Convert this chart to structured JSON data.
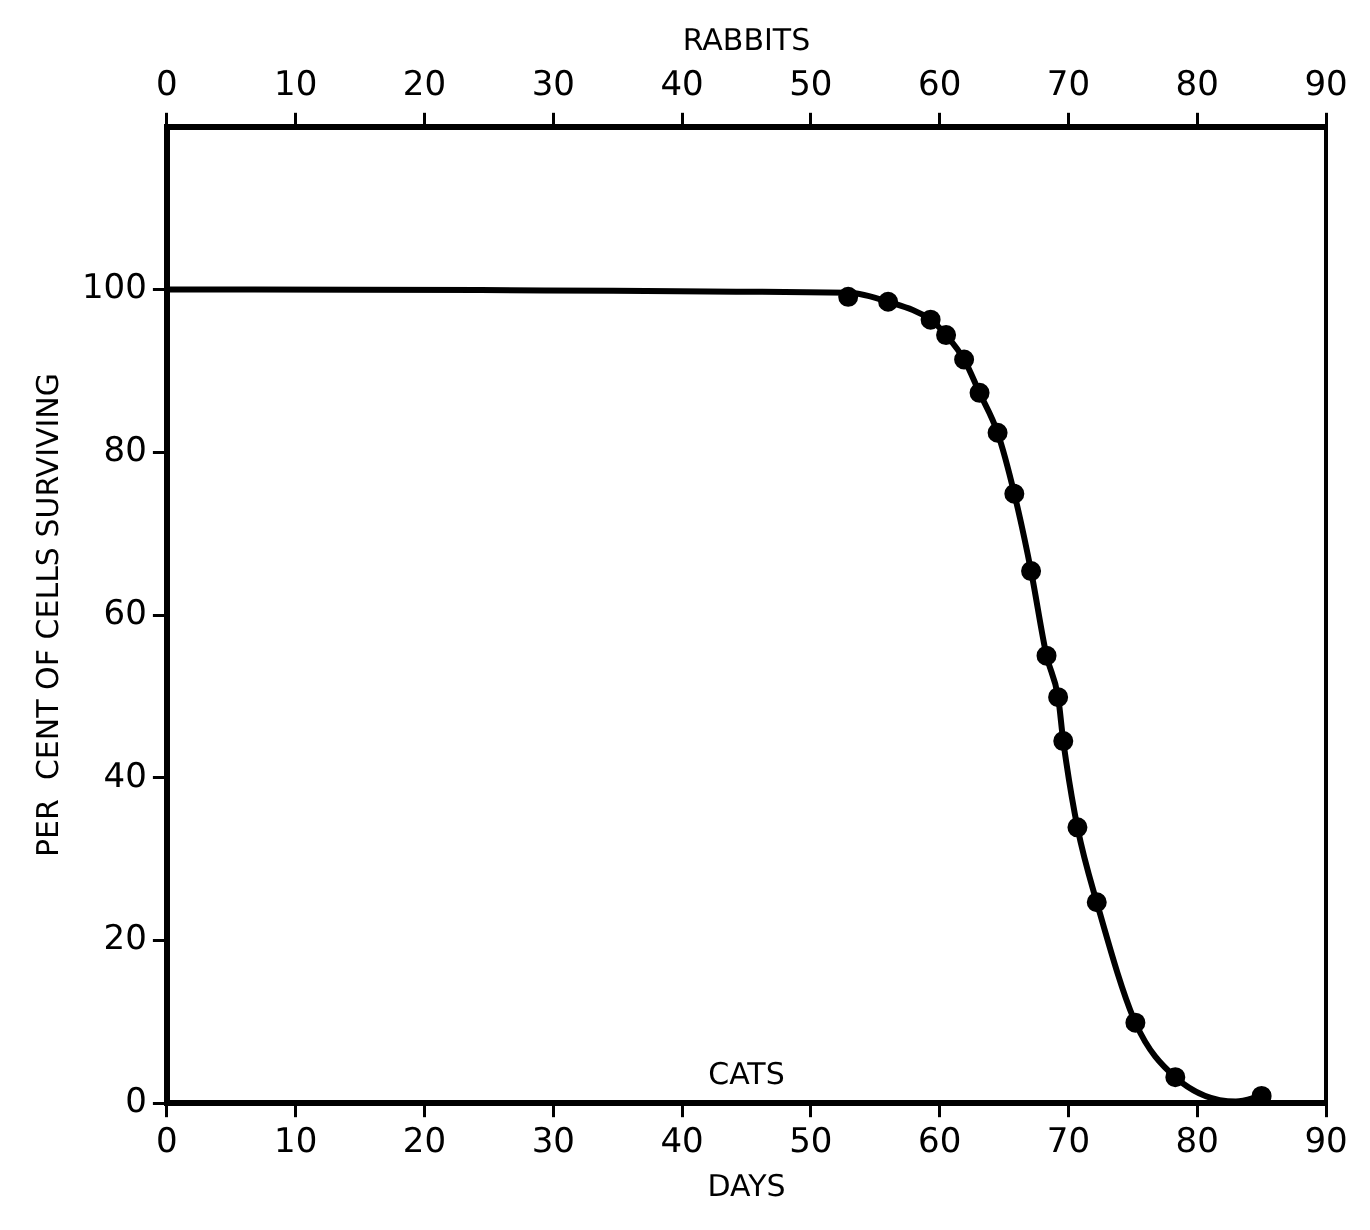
{
  "chart_data": {
    "type": "scatter",
    "xlabel": "DAYS",
    "x2label": "RABBITS",
    "ylabel": "PER  CENT OF CELLS SURVIVING",
    "annotations": [
      "CATS"
    ],
    "xlim": [
      0,
      90
    ],
    "xticks": [
      0,
      10,
      20,
      30,
      40,
      50,
      60,
      70,
      80,
      90
    ],
    "x2lim": [
      0,
      90
    ],
    "x2ticks": [
      0,
      10,
      20,
      30,
      40,
      50,
      60,
      70,
      80,
      90
    ],
    "ylim": [
      0,
      120
    ],
    "yticks": [
      0,
      20,
      40,
      60,
      80,
      100
    ],
    "grid": false,
    "legend": false,
    "series": [
      {
        "type": "line",
        "marker": "none",
        "line_style": "solid",
        "color": "#000000",
        "x": [
          0,
          52.9,
          56.0,
          59.3,
          60.5,
          61.9,
          63.1,
          64.5,
          65.8,
          67.1,
          68.3,
          69.2,
          69.6,
          70.7,
          72.2,
          75.2,
          78.3,
          83,
          85.0
        ],
        "values": [
          100,
          99.6,
          98.5,
          96.3,
          94.4,
          91.4,
          87.3,
          82.4,
          74.9,
          65.4,
          55.0,
          49.9,
          44.5,
          33.9,
          24.7,
          9.9,
          3.2,
          0.2,
          0.9
        ]
      },
      {
        "type": "scatter",
        "marker": "circle",
        "color": "#000000",
        "x": [
          52.9,
          56.0,
          59.3,
          60.5,
          61.9,
          63.1,
          64.5,
          65.8,
          67.1,
          68.3,
          69.2,
          69.6,
          70.7,
          72.2,
          75.2,
          78.3,
          85.0
        ],
        "values": [
          99.1,
          98.5,
          96.3,
          94.4,
          91.4,
          87.3,
          82.4,
          74.9,
          65.4,
          55.0,
          49.9,
          44.5,
          33.9,
          24.7,
          9.9,
          3.2,
          0.9
        ]
      }
    ]
  }
}
